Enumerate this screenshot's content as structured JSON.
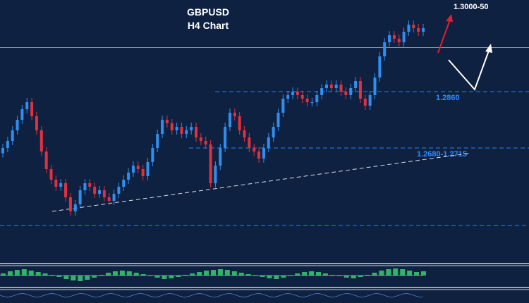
{
  "chart_data": {
    "type": "candlestick",
    "title": "GBPUSD",
    "subtitle": "H4 Chart",
    "ylim": [
      1.24,
      1.31
    ],
    "levels": [
      {
        "label": "1.2860",
        "value": 1.286,
        "color": "#2f8cff"
      },
      {
        "label": "1.2680-1.2715",
        "value": 1.27,
        "color": "#2f8cff"
      },
      {
        "label": "",
        "value": 1.248,
        "color": "#2f8cff"
      },
      {
        "label": "",
        "value": 1.2985,
        "color": "#c9d3e0"
      }
    ],
    "target": {
      "label": "1.3000-50",
      "value": 1.3025
    },
    "trendline": {
      "start": [
        0,
        1.252
      ],
      "end": [
        88,
        1.2665
      ]
    },
    "closes": [
      1.27,
      1.272,
      1.275,
      1.278,
      1.281,
      1.283,
      1.279,
      1.275,
      1.269,
      1.264,
      1.261,
      1.259,
      1.26,
      1.256,
      1.252,
      1.254,
      1.258,
      1.26,
      1.259,
      1.257,
      1.258,
      1.256,
      1.255,
      1.257,
      1.259,
      1.261,
      1.263,
      1.265,
      1.264,
      1.262,
      1.266,
      1.27,
      1.274,
      1.278,
      1.277,
      1.275,
      1.276,
      1.274,
      1.275,
      1.276,
      1.273,
      1.272,
      1.271,
      1.26,
      1.265,
      1.27,
      1.276,
      1.28,
      1.279,
      1.275,
      1.273,
      1.27,
      1.269,
      1.267,
      1.27,
      1.273,
      1.276,
      1.28,
      1.284,
      1.285,
      1.286,
      1.285,
      1.284,
      1.283,
      1.283,
      1.285,
      1.287,
      1.288,
      1.287,
      1.288,
      1.286,
      1.285,
      1.287,
      1.289,
      1.284,
      1.282,
      1.285,
      1.29,
      1.296,
      1.3,
      1.302,
      1.301,
      1.3,
      1.303,
      1.305,
      1.304,
      1.303,
      1.304
    ],
    "macd_values": [
      0.3,
      0.6,
      0.8,
      0.9,
      0.7,
      0.5,
      0.3,
      0.1,
      -0.2,
      -0.5,
      -0.7,
      -0.8,
      -0.6,
      -0.3,
      0.1,
      0.4,
      0.6,
      0.7,
      0.6,
      0.4,
      0.2,
      0.0,
      -0.3,
      -0.5,
      -0.4,
      -0.2,
      0.1,
      0.3,
      0.5,
      0.7,
      0.8,
      0.9,
      0.8,
      0.6,
      0.4,
      0.2,
      0.0,
      -0.2,
      -0.4,
      -0.5,
      -0.3,
      0.0,
      0.3,
      0.5,
      0.6,
      0.5,
      0.3,
      0.1,
      -0.1,
      -0.3,
      -0.4,
      -0.2,
      0.1,
      0.4,
      0.7,
      0.9,
      1.0,
      0.9,
      0.7,
      0.5,
      0.6
    ]
  }
}
